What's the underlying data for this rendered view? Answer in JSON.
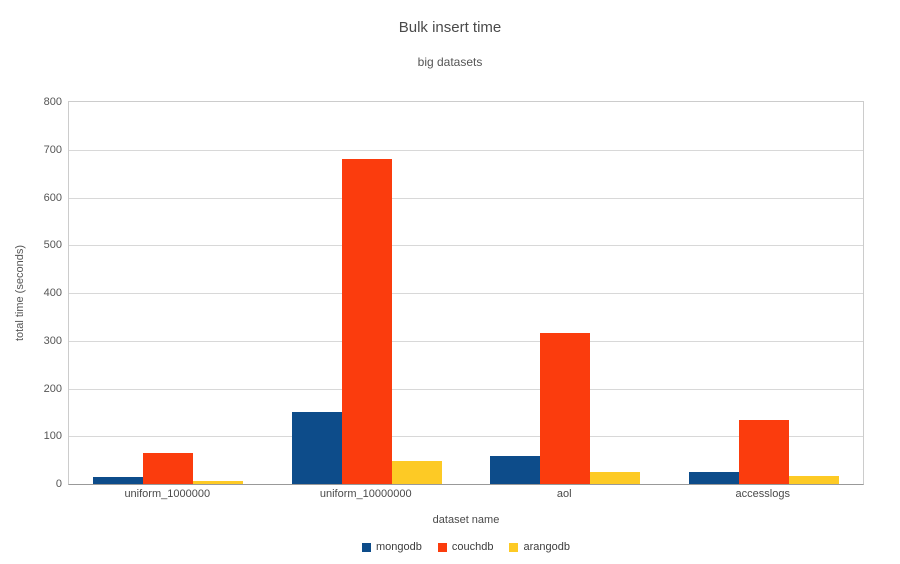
{
  "title": "Bulk insert time",
  "subtitle": "big datasets",
  "chart_data": {
    "type": "bar",
    "title": "Bulk insert time",
    "subtitle": "big datasets",
    "categories": [
      "uniform_1000000",
      "uniform_10000000",
      "aol",
      "accesslogs"
    ],
    "series": [
      {
        "name": "mongodb",
        "color": "#0d4c8a",
        "values": [
          15,
          151,
          58,
          26
        ]
      },
      {
        "name": "couchdb",
        "color": "#fb3c0d",
        "values": [
          65,
          680,
          317,
          134
        ]
      },
      {
        "name": "arangodb",
        "color": "#fdca25",
        "values": [
          6,
          48,
          25,
          17
        ]
      }
    ],
    "xlabel": "dataset name",
    "ylabel": "total time (seconds)",
    "ylim": [
      0,
      800
    ],
    "yticks": [
      0,
      100,
      200,
      300,
      400,
      500,
      600,
      700,
      800
    ],
    "grid": true,
    "legend_position": "bottom"
  },
  "style": {
    "grid_color": "#d8d8d8",
    "axis_color": "#999999",
    "border_color": "#cccccc",
    "text_color": "#4a4a4a"
  }
}
